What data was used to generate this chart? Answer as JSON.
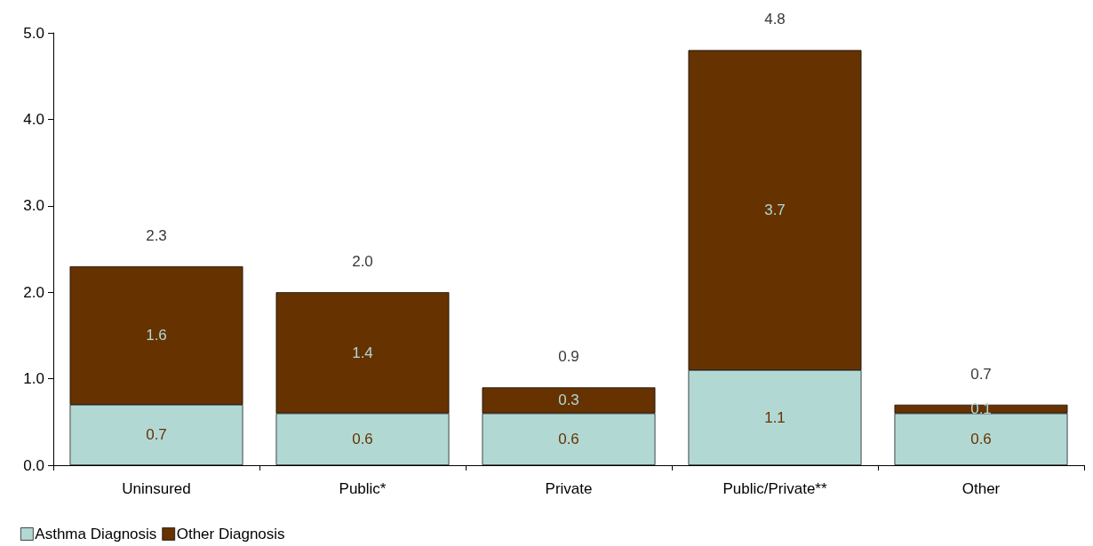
{
  "chart_data": {
    "type": "bar",
    "stacked": true,
    "categories": [
      "Uninsured",
      "Public*",
      "Private",
      "Public/Private**",
      "Other"
    ],
    "series": [
      {
        "name": "Asthma Diagnosis",
        "color": "#b2d8d4",
        "values": [
          0.7,
          0.6,
          0.6,
          1.1,
          0.6
        ]
      },
      {
        "name": "Other Diagnosis",
        "color": "#663300",
        "values": [
          1.6,
          1.4,
          0.3,
          3.7,
          0.1
        ]
      }
    ],
    "totals": [
      "2.3",
      "2.0",
      "0.9",
      "4.8",
      "0.7"
    ],
    "ylim": [
      0,
      5
    ],
    "yticks": [
      {
        "value": 0,
        "label": "0.0"
      },
      {
        "value": 1,
        "label": "1.0"
      },
      {
        "value": 2,
        "label": "2.0"
      },
      {
        "value": 3,
        "label": "3.0"
      },
      {
        "value": 4,
        "label": "4.0"
      },
      {
        "value": 5,
        "label": "5.0"
      }
    ],
    "data_labels": true,
    "grid": false,
    "legend": "bottom left"
  }
}
